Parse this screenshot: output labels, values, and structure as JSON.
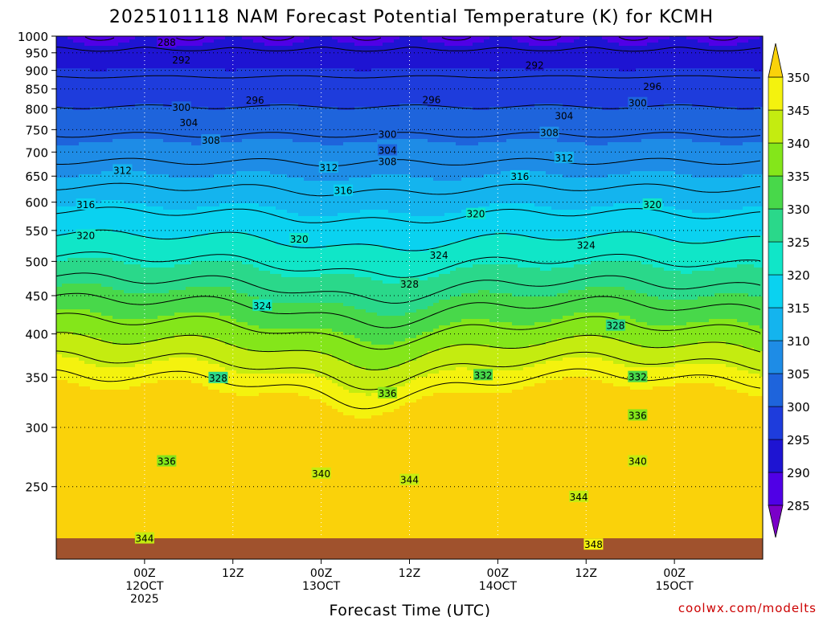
{
  "chart_data": {
    "type": "contour",
    "title": "2025101118 NAM Forecast Potential Temperature (K) for KCMH",
    "xlabel": "Forecast Time (UTC)",
    "ylabel": "",
    "credit": "coolwx.com/modelts",
    "x_range_hours_from_12OCT_00Z": [
      -12,
      84
    ],
    "y_range_hPa": [
      1000,
      200
    ],
    "y_scale": "log",
    "y_ticks": [
      250,
      300,
      350,
      400,
      450,
      500,
      550,
      600,
      650,
      700,
      750,
      800,
      850,
      900,
      950,
      1000
    ],
    "x_ticks": [
      {
        "hour": 0,
        "lines": [
          "00Z",
          "12OCT",
          "2025"
        ]
      },
      {
        "hour": 12,
        "lines": [
          "12Z"
        ]
      },
      {
        "hour": 24,
        "lines": [
          "00Z",
          "13OCT"
        ]
      },
      {
        "hour": 36,
        "lines": [
          "12Z"
        ]
      },
      {
        "hour": 48,
        "lines": [
          "00Z",
          "14OCT"
        ]
      },
      {
        "hour": 60,
        "lines": [
          "12Z"
        ]
      },
      {
        "hour": 72,
        "lines": [
          "00Z",
          "15OCT"
        ]
      }
    ],
    "grid": true,
    "colorbar": {
      "levels": [
        285,
        290,
        295,
        300,
        305,
        310,
        315,
        320,
        325,
        330,
        335,
        340,
        345,
        350
      ],
      "colors": [
        "#7a00c8",
        "#5000e6",
        "#1e14d2",
        "#1e3cdc",
        "#1e64dc",
        "#1e8ce6",
        "#14b4ee",
        "#0ad2f0",
        "#10e6c8",
        "#2ad88a",
        "#48d84a",
        "#84e61a",
        "#c4ec10",
        "#f4f20e",
        "#fad20a"
      ],
      "position": "right"
    },
    "contour_levels": [
      288,
      292,
      296,
      300,
      304,
      308,
      312,
      316,
      320,
      324,
      328,
      332,
      336,
      340,
      344,
      348
    ],
    "contour_labels": [
      {
        "text": "344",
        "t": 0,
        "p": 213
      },
      {
        "text": "336",
        "t": 3,
        "p": 270
      },
      {
        "text": "328",
        "t": 10,
        "p": 349
      },
      {
        "text": "324",
        "t": 16,
        "p": 436
      },
      {
        "text": "320",
        "t": -8,
        "p": 541
      },
      {
        "text": "316",
        "t": -8,
        "p": 595
      },
      {
        "text": "312",
        "t": -3,
        "p": 661
      },
      {
        "text": "308",
        "t": 9,
        "p": 725
      },
      {
        "text": "304",
        "t": 6,
        "p": 766
      },
      {
        "text": "300",
        "t": 5,
        "p": 802
      },
      {
        "text": "296",
        "t": 15,
        "p": 821
      },
      {
        "text": "292",
        "t": 5,
        "p": 928
      },
      {
        "text": "288",
        "t": 3,
        "p": 980
      },
      {
        "text": "340",
        "t": 24,
        "p": 260
      },
      {
        "text": "344",
        "t": 36,
        "p": 255
      },
      {
        "text": "336",
        "t": 33,
        "p": 333
      },
      {
        "text": "332",
        "t": 46,
        "p": 352
      },
      {
        "text": "320",
        "t": 21,
        "p": 535
      },
      {
        "text": "316",
        "t": 27,
        "p": 621
      },
      {
        "text": "312",
        "t": 25,
        "p": 667
      },
      {
        "text": "308",
        "t": 33,
        "p": 679
      },
      {
        "text": "304",
        "t": 33,
        "p": 703
      },
      {
        "text": "300",
        "t": 33,
        "p": 739
      },
      {
        "text": "296",
        "t": 39,
        "p": 822
      },
      {
        "text": "328",
        "t": 36,
        "p": 466
      },
      {
        "text": "324",
        "t": 40,
        "p": 509
      },
      {
        "text": "320",
        "t": 45,
        "p": 578
      },
      {
        "text": "316",
        "t": 51,
        "p": 649
      },
      {
        "text": "292",
        "t": 53,
        "p": 914
      },
      {
        "text": "348",
        "t": 61,
        "p": 209
      },
      {
        "text": "344",
        "t": 59,
        "p": 242
      },
      {
        "text": "340",
        "t": 67,
        "p": 270
      },
      {
        "text": "336",
        "t": 67,
        "p": 311
      },
      {
        "text": "332",
        "t": 67,
        "p": 350
      },
      {
        "text": "328",
        "t": 64,
        "p": 410
      },
      {
        "text": "324",
        "t": 60,
        "p": 525
      },
      {
        "text": "320",
        "t": 69,
        "p": 595
      },
      {
        "text": "312",
        "t": 57,
        "p": 687
      },
      {
        "text": "308",
        "t": 55,
        "p": 742
      },
      {
        "text": "304",
        "t": 57,
        "p": 782
      },
      {
        "text": "300",
        "t": 67,
        "p": 813
      },
      {
        "text": "296",
        "t": 69,
        "p": 856
      }
    ]
  }
}
